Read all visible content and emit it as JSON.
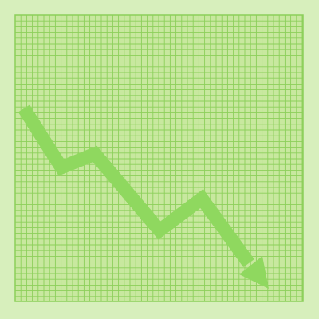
{
  "colors": {
    "background": "#d7efbc",
    "grid_panel": "#c8e89f",
    "grid_line": "#8ccf5a",
    "grid_border": "#8ccf5a",
    "arrow": "#8fd85f"
  },
  "icons": {
    "main": "downward-trend-arrow-icon"
  }
}
